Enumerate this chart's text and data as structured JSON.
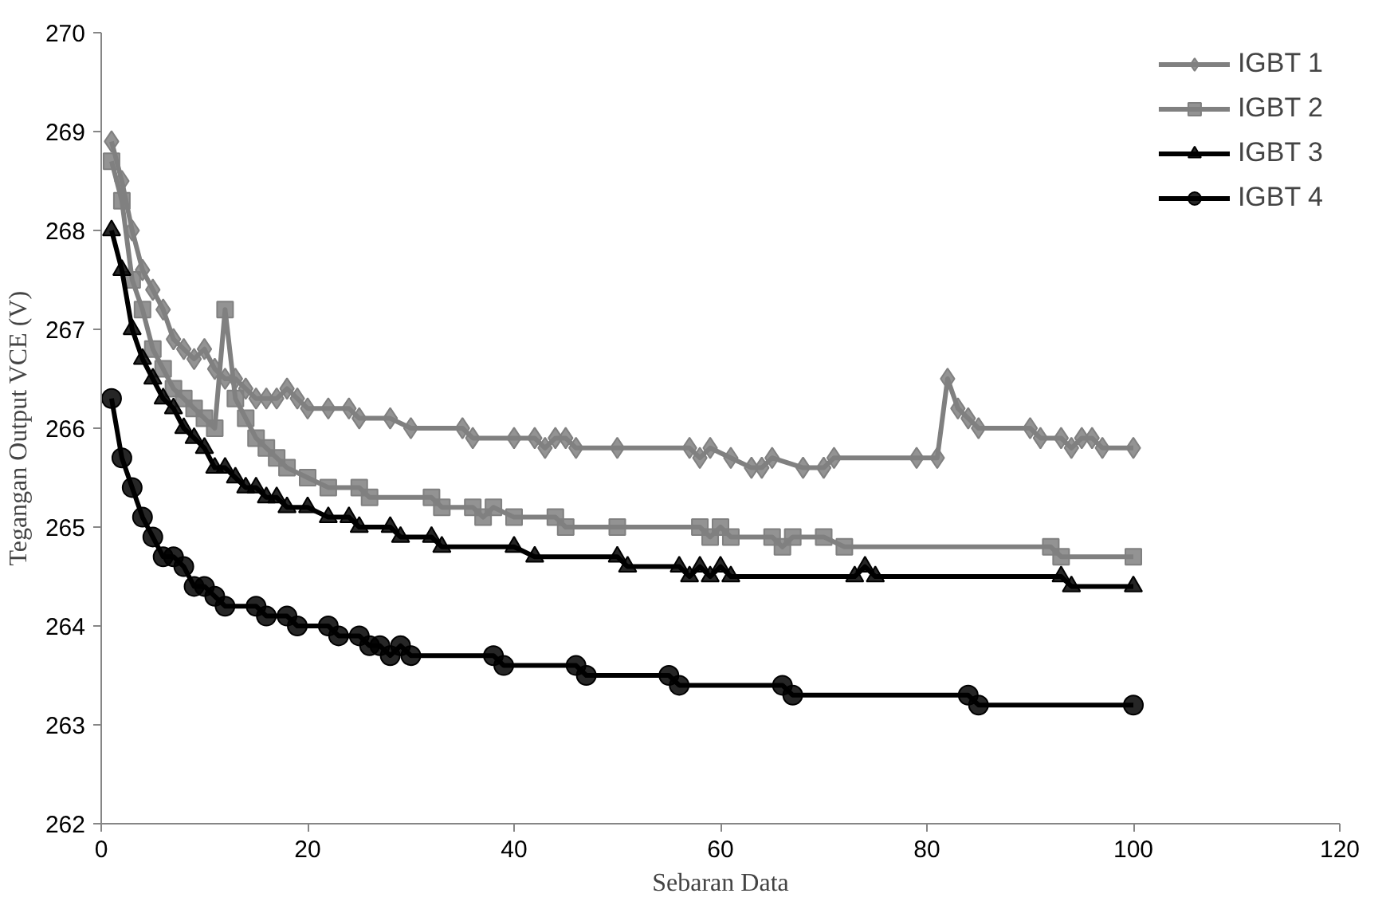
{
  "chart_data": {
    "type": "line",
    "xlabel": "Sebaran Data",
    "ylabel": "Tegangan Output VCE (V)",
    "xlim": [
      0,
      120
    ],
    "xticks": [
      0,
      20,
      40,
      60,
      80,
      100,
      120
    ],
    "ylim": [
      262,
      270
    ],
    "yticks": [
      262,
      263,
      264,
      265,
      266,
      267,
      268,
      269,
      270
    ],
    "grid": false,
    "legend": "top right",
    "line_style": "solid",
    "series": [
      {
        "name": "IGBT 1",
        "color": "#808080",
        "marker": "diamond",
        "x": [
          1,
          2,
          3,
          4,
          5,
          6,
          7,
          8,
          9,
          10,
          11,
          12,
          13,
          14,
          15,
          16,
          17,
          18,
          19,
          20,
          22,
          24,
          25,
          28,
          30,
          35,
          36,
          40,
          42,
          43,
          44,
          45,
          46,
          50,
          57,
          58,
          59,
          61,
          63,
          64,
          65,
          68,
          70,
          71,
          79,
          81,
          82,
          83,
          84,
          85,
          90,
          91,
          93,
          94,
          95,
          96,
          97,
          100
        ],
        "values": [
          268.9,
          268.5,
          268.0,
          267.6,
          267.4,
          267.2,
          266.9,
          266.8,
          266.7,
          266.8,
          266.6,
          266.5,
          266.5,
          266.4,
          266.3,
          266.3,
          266.3,
          266.4,
          266.3,
          266.2,
          266.2,
          266.2,
          266.1,
          266.1,
          266.0,
          266.0,
          265.9,
          265.9,
          265.9,
          265.8,
          265.9,
          265.9,
          265.8,
          265.8,
          265.8,
          265.7,
          265.8,
          265.7,
          265.6,
          265.6,
          265.7,
          265.6,
          265.6,
          265.7,
          265.7,
          265.7,
          266.5,
          266.2,
          266.1,
          266.0,
          266.0,
          265.9,
          265.9,
          265.8,
          265.9,
          265.9,
          265.8,
          265.8
        ]
      },
      {
        "name": "IGBT 2",
        "color": "#808080",
        "marker": "square",
        "x": [
          1,
          2,
          3,
          4,
          5,
          6,
          7,
          8,
          9,
          10,
          11,
          12,
          13,
          14,
          15,
          16,
          17,
          18,
          20,
          22,
          25,
          26,
          32,
          33,
          36,
          37,
          38,
          40,
          44,
          45,
          50,
          58,
          59,
          60,
          61,
          65,
          66,
          67,
          70,
          72,
          92,
          93,
          100
        ],
        "values": [
          268.7,
          268.3,
          267.5,
          267.2,
          266.8,
          266.6,
          266.4,
          266.3,
          266.2,
          266.1,
          266.0,
          267.2,
          266.3,
          266.1,
          265.9,
          265.8,
          265.7,
          265.6,
          265.5,
          265.4,
          265.4,
          265.3,
          265.3,
          265.2,
          265.2,
          265.1,
          265.2,
          265.1,
          265.1,
          265.0,
          265.0,
          265.0,
          264.9,
          265.0,
          264.9,
          264.9,
          264.8,
          264.9,
          264.9,
          264.8,
          264.8,
          264.7,
          264.7
        ]
      },
      {
        "name": "IGBT 3",
        "color": "#000000",
        "marker": "triangle",
        "x": [
          1,
          2,
          3,
          4,
          5,
          6,
          7,
          8,
          9,
          10,
          11,
          12,
          13,
          14,
          15,
          16,
          17,
          18,
          20,
          22,
          24,
          25,
          28,
          29,
          32,
          33,
          40,
          42,
          50,
          51,
          56,
          57,
          58,
          59,
          60,
          61,
          73,
          74,
          75,
          93,
          94,
          100
        ],
        "values": [
          268.0,
          267.6,
          267.0,
          266.7,
          266.5,
          266.3,
          266.2,
          266.0,
          265.9,
          265.8,
          265.6,
          265.6,
          265.5,
          265.4,
          265.4,
          265.3,
          265.3,
          265.2,
          265.2,
          265.1,
          265.1,
          265.0,
          265.0,
          264.9,
          264.9,
          264.8,
          264.8,
          264.7,
          264.7,
          264.6,
          264.6,
          264.5,
          264.6,
          264.5,
          264.6,
          264.5,
          264.5,
          264.6,
          264.5,
          264.5,
          264.4,
          264.4
        ]
      },
      {
        "name": "IGBT 4",
        "color": "#000000",
        "marker": "circle",
        "x": [
          1,
          2,
          3,
          4,
          5,
          6,
          7,
          8,
          9,
          10,
          11,
          12,
          15,
          16,
          18,
          19,
          22,
          23,
          25,
          26,
          27,
          28,
          29,
          30,
          38,
          39,
          46,
          47,
          55,
          56,
          66,
          67,
          84,
          85,
          100
        ],
        "values": [
          266.3,
          265.7,
          265.4,
          265.1,
          264.9,
          264.7,
          264.7,
          264.6,
          264.4,
          264.4,
          264.3,
          264.2,
          264.2,
          264.1,
          264.1,
          264.0,
          264.0,
          263.9,
          263.9,
          263.8,
          263.8,
          263.7,
          263.8,
          263.7,
          263.7,
          263.6,
          263.6,
          263.5,
          263.5,
          263.4,
          263.4,
          263.3,
          263.3,
          263.2,
          263.2
        ]
      }
    ]
  }
}
